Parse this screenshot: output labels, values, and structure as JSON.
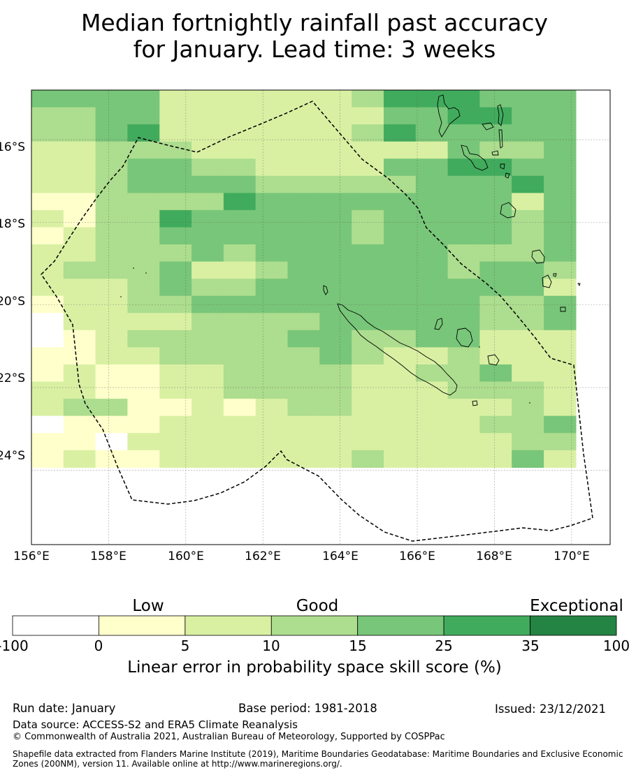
{
  "title": {
    "line1": "Median fortnightly rainfall past accuracy",
    "line2": "for January. Lead time: 3 weeks"
  },
  "map": {
    "lat_ticks": [
      "16°S",
      "18°S",
      "20°S",
      "22°S",
      "24°S"
    ],
    "lon_ticks": [
      "156°E",
      "158°E",
      "160°E",
      "162°E",
      "164°E",
      "166°E",
      "168°E",
      "170°E"
    ],
    "lon_range": [
      156,
      171
    ],
    "lat_range": [
      -25.8,
      -14.8
    ],
    "cell_size_deg": 0.83,
    "grid_levels": [
      "33331111112444333",
      "22331111111334433",
      "22341111112433333",
      "11222111111113223",
      "11233221111334433",
      "11233332222233343",
      "00222243333333313",
      "10224333332333323",
      "01223333332333323",
      "11222323333332223",
      "12223112333332332",
      "11123223333333331",
      "01122333333333223",
      "-1111222233333223",
      "-0122222332233111",
      "00112222232112111",
      "01001122221122311",
      "11001122221112221",
      "12200101221111121",
      "-0001111111111223",
      "00-11111111111122",
      "01001111112111131"
    ]
  },
  "colorbar": {
    "categories": [
      "Low",
      "Good",
      "Exceptional"
    ],
    "ticks": [
      "-100",
      "0",
      "5",
      "10",
      "15",
      "25",
      "35",
      "100"
    ],
    "colors": [
      "#ffffff",
      "#ffffcc",
      "#d9f0a3",
      "#addd8e",
      "#78c679",
      "#41ab5d",
      "#238443"
    ],
    "label": "Linear error in probability space skill score (%)"
  },
  "footer": {
    "run_date": "Run date: January",
    "base_period": "Base period: 1981-2018",
    "issued": "Issued: 23/12/2021",
    "data_source": "Data source: ACCESS-S2 and ERA5 Climate Reanalysis",
    "copyright": "© Commonwealth of Australia 2021, Australian Bureau of Meteorology, Supported by COSPPac",
    "shapefile_note": "Shapefile data extracted from Flanders Marine Institute (2019), Maritime Boundaries Geodatabase: Maritime Boundaries and Exclusive Economic Zones (200NM), version 11. Available online at http://www.marineregions.org/."
  }
}
